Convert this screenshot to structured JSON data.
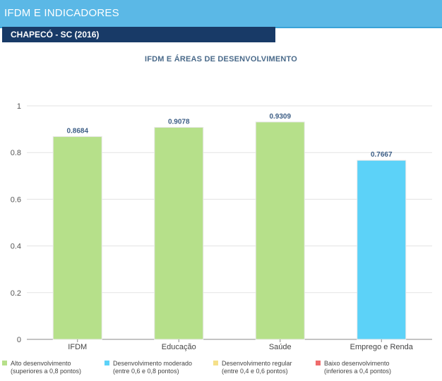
{
  "header": {
    "title": "IFDM E INDICADORES",
    "subtitle": "CHAPECÓ - SC (2016)"
  },
  "colors": {
    "header_bg": "#5bb8e6",
    "subheader_bg": "#183a67",
    "alto": "#b6e08a",
    "moderado": "#5cd2f8",
    "regular": "#f5e08a",
    "baixo": "#ef6b6b"
  },
  "chart_data": {
    "type": "bar",
    "title": "IFDM E ÁREAS DE DESENVOLVIMENTO",
    "categories": [
      "IFDM",
      "Educação",
      "Saúde",
      "Emprego e Renda"
    ],
    "values": [
      0.8684,
      0.9078,
      0.9309,
      0.7667
    ],
    "value_labels": [
      "0.8684",
      "0.9078",
      "0.9309",
      "0.7667"
    ],
    "bar_classes": [
      "alto",
      "alto",
      "alto",
      "moderado"
    ],
    "ylim": [
      0,
      1
    ],
    "yticks": [
      0,
      0.2,
      0.4,
      0.6,
      0.8,
      1
    ],
    "ytick_labels": [
      "0",
      "0.2",
      "0.4",
      "0.6",
      "0.8",
      "1"
    ],
    "grid": true,
    "legend_position": "bottom"
  },
  "legend": [
    {
      "key": "alto",
      "line1": "Alto desenvolvimento",
      "line2": "(superiores a 0,8 pontos)"
    },
    {
      "key": "moderado",
      "line1": "Desenvolvimento moderado",
      "line2": "(entre 0,6 e 0,8 pontos)"
    },
    {
      "key": "regular",
      "line1": "Desenvolvimento regular",
      "line2": "(entre 0,4 e 0,6 pontos)"
    },
    {
      "key": "baixo",
      "line1": "Baixo desenvolvimento",
      "line2": "(inferiores a 0,4 pontos)"
    }
  ]
}
